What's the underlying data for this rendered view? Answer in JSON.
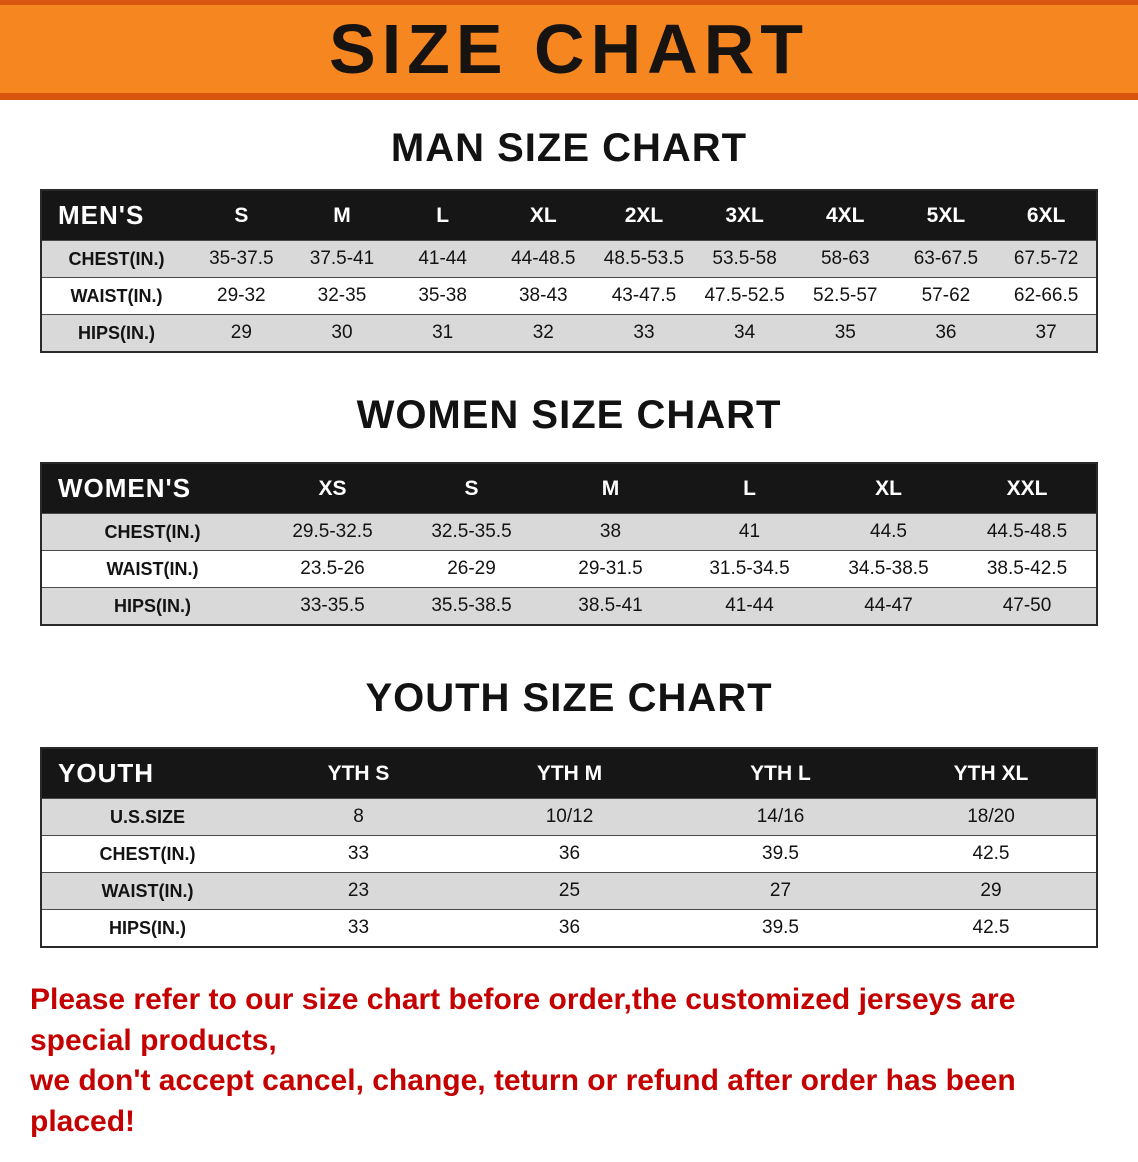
{
  "banner": {
    "title": "SIZE CHART"
  },
  "colors": {
    "banner_background": "#f6861f",
    "banner_border": "#d9560e",
    "table_header_background": "#161616",
    "table_header_text": "#ffffff",
    "row_alternate_background": "#d9d9d9",
    "footer_text": "#c40000"
  },
  "tables": [
    {
      "heading": "MAN SIZE CHART",
      "header": [
        "MEN'S",
        "S",
        "M",
        "L",
        "XL",
        "2XL",
        "3XL",
        "4XL",
        "5XL",
        "6XL"
      ],
      "rows": [
        [
          "CHEST(IN.)",
          "35-37.5",
          "37.5-41",
          "41-44",
          "44-48.5",
          "48.5-53.5",
          "53.5-58",
          "58-63",
          "63-67.5",
          "67.5-72"
        ],
        [
          "WAIST(IN.)",
          "29-32",
          "32-35",
          "35-38",
          "38-43",
          "43-47.5",
          "47.5-52.5",
          "52.5-57",
          "57-62",
          "62-66.5"
        ],
        [
          "HIPS(IN.)",
          "29",
          "30",
          "31",
          "32",
          "33",
          "34",
          "35",
          "36",
          "37"
        ]
      ]
    },
    {
      "heading": "WOMEN SIZE CHART",
      "header": [
        "WOMEN'S",
        "XS",
        "S",
        "M",
        "L",
        "XL",
        "XXL"
      ],
      "rows": [
        [
          "CHEST(IN.)",
          "29.5-32.5",
          "32.5-35.5",
          "38",
          "41",
          "44.5",
          "44.5-48.5"
        ],
        [
          "WAIST(IN.)",
          "23.5-26",
          "26-29",
          "29-31.5",
          "31.5-34.5",
          "34.5-38.5",
          "38.5-42.5"
        ],
        [
          "HIPS(IN.)",
          "33-35.5",
          "35.5-38.5",
          "38.5-41",
          "41-44",
          "44-47",
          "47-50"
        ]
      ]
    },
    {
      "heading": "YOUTH SIZE CHART",
      "header": [
        "YOUTH",
        "YTH S",
        "YTH M",
        "YTH L",
        "YTH XL"
      ],
      "rows": [
        [
          "U.S.SIZE",
          "8",
          "10/12",
          "14/16",
          "18/20"
        ],
        [
          "CHEST(IN.)",
          "33",
          "36",
          "39.5",
          "42.5"
        ],
        [
          "WAIST(IN.)",
          "23",
          "25",
          "27",
          "29"
        ],
        [
          "HIPS(IN.)",
          "33",
          "36",
          "39.5",
          "42.5"
        ]
      ]
    }
  ],
  "footer": {
    "lines": [
      "Please refer to our size chart before order,the customized jerseys are special products,",
      "we don't accept cancel, change, teturn or refund after order has been placed!"
    ]
  }
}
